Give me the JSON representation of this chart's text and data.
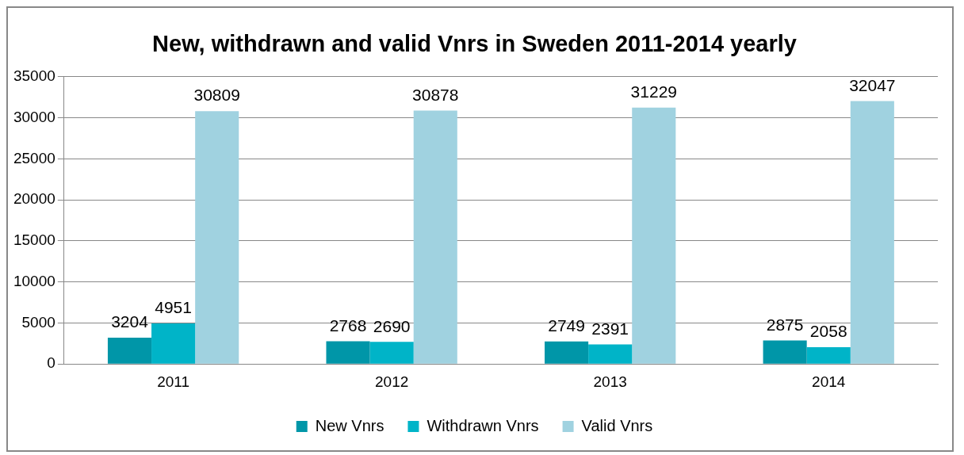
{
  "chart_data": {
    "type": "bar",
    "title": "New, withdrawn and valid Vnrs in Sweden 2011-2014 yearly",
    "categories": [
      "2011",
      "2012",
      "2013",
      "2014"
    ],
    "series": [
      {
        "name": "New Vnrs",
        "color": "#0096a8",
        "values": [
          3204,
          2768,
          2749,
          2875
        ]
      },
      {
        "name": "Withdrawn Vnrs",
        "color": "#00b4c8",
        "values": [
          4951,
          2690,
          2391,
          2058
        ]
      },
      {
        "name": "Valid Vnrs",
        "color": "#a0d2e0",
        "values": [
          30809,
          30878,
          31229,
          32047
        ]
      }
    ],
    "ylim": [
      0,
      35000
    ],
    "yticks": [
      0,
      5000,
      10000,
      15000,
      20000,
      25000,
      30000,
      35000
    ],
    "grid": "y",
    "legend": "bottom",
    "data_labels": true
  }
}
